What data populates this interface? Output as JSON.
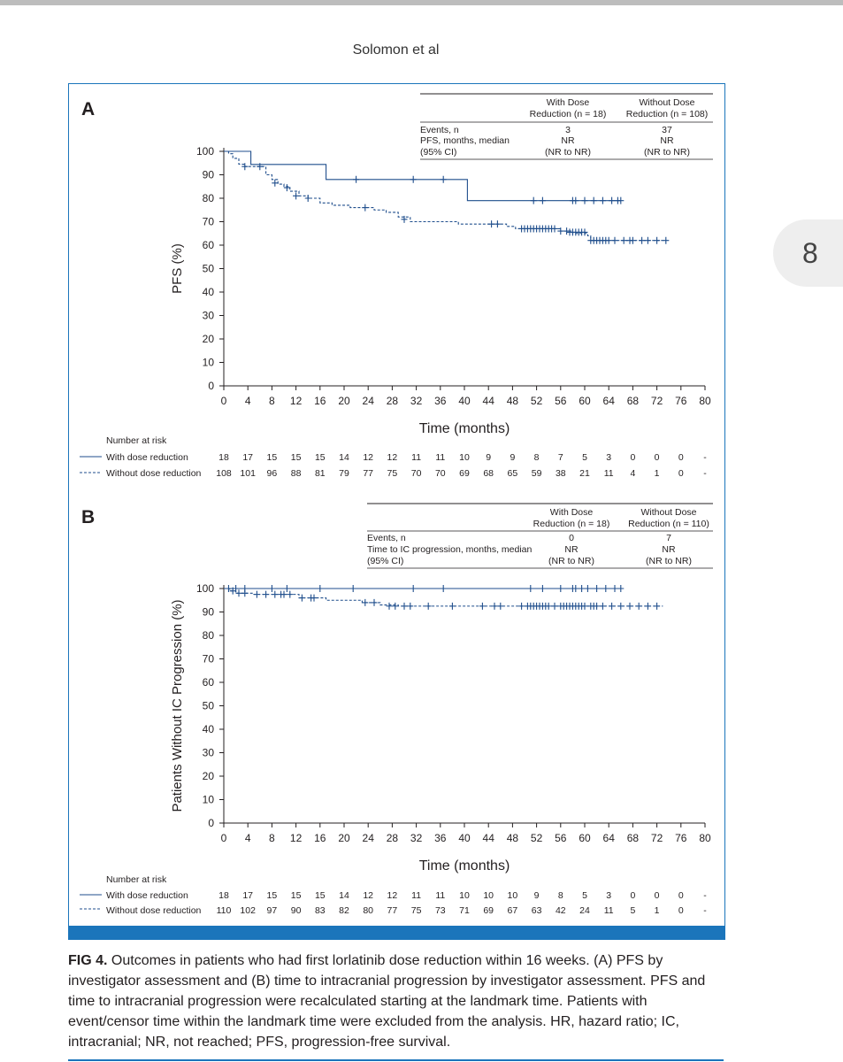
{
  "running_head": "Solomon et al",
  "page_number": "8",
  "colors": {
    "line": "#1f4e8c",
    "frame": "#1b75bb"
  },
  "caption": {
    "label": "FIG 4.",
    "text": "Outcomes in patients who had first lorlatinib dose reduction within 16 weeks. (A) PFS by investigator assessment and (B) time to intracranial progression by investigator assessment. PFS and time to intracranial progression were recalculated starting at the landmark time. Patients with event/censor time within the landmark time were excluded from the analysis. HR, hazard ratio; IC, intracranial; NR, not reached; PFS, progression-free survival."
  },
  "chart_data": [
    {
      "panel": "A",
      "type": "line",
      "xlabel": "Time (months)",
      "ylabel": "PFS (%)",
      "xlim": [
        0,
        80
      ],
      "ylim": [
        0,
        100
      ],
      "xticks": [
        0,
        4,
        8,
        12,
        16,
        20,
        24,
        28,
        32,
        36,
        40,
        44,
        48,
        52,
        56,
        60,
        64,
        68,
        72,
        76,
        80
      ],
      "yticks": [
        0,
        10,
        20,
        30,
        40,
        50,
        60,
        70,
        80,
        90,
        100
      ],
      "table": {
        "headers": [
          "With Dose\nReduction (n = 18)",
          "Without Dose\nReduction (n = 108)"
        ],
        "rows": [
          {
            "label": "Events, n",
            "values": [
              "3",
              "37"
            ]
          },
          {
            "label": "PFS, months, median",
            "values": [
              "NR",
              "NR"
            ]
          },
          {
            "label": "(95% CI)",
            "values": [
              "(NR to NR)",
              "(NR to NR)"
            ]
          }
        ]
      },
      "risk_title": "Number at risk",
      "series": [
        {
          "name": "With dose reduction",
          "style": "solid",
          "steps": [
            [
              0,
              100
            ],
            [
              4.5,
              94.4
            ],
            [
              17,
              88
            ],
            [
              40.5,
              79
            ]
          ],
          "end": 66,
          "censors": [
            [
              22,
              88
            ],
            [
              31.5,
              88
            ],
            [
              36.5,
              88
            ],
            [
              51.5,
              79
            ],
            [
              53,
              79
            ],
            [
              58,
              79
            ],
            [
              58.5,
              79
            ],
            [
              60,
              79
            ],
            [
              61.5,
              79
            ],
            [
              63,
              79
            ],
            [
              64.5,
              79
            ],
            [
              65.5,
              79
            ],
            [
              66,
              79
            ]
          ],
          "at_risk": [
            "18",
            "17",
            "15",
            "15",
            "15",
            "14",
            "12",
            "12",
            "11",
            "11",
            "10",
            "9",
            "9",
            "8",
            "7",
            "5",
            "3",
            "0",
            "0",
            "0",
            "-"
          ]
        },
        {
          "name": "Without dose reduction",
          "style": "dashed",
          "steps": [
            [
              0,
              100
            ],
            [
              0.8,
              99
            ],
            [
              1.5,
              97
            ],
            [
              2.5,
              94.5
            ],
            [
              3.5,
              93.5
            ],
            [
              7,
              90
            ],
            [
              8,
              88
            ],
            [
              9,
              86
            ],
            [
              10,
              85
            ],
            [
              11,
              83
            ],
            [
              12.5,
              81
            ],
            [
              14,
              80
            ],
            [
              16,
              78
            ],
            [
              18,
              77
            ],
            [
              21,
              76
            ],
            [
              25,
              75
            ],
            [
              27,
              74
            ],
            [
              29,
              72
            ],
            [
              31,
              70
            ],
            [
              37,
              70
            ],
            [
              39,
              69
            ],
            [
              45,
              69
            ],
            [
              47,
              68
            ],
            [
              48.5,
              67
            ],
            [
              56,
              66
            ],
            [
              58,
              65
            ],
            [
              60.5,
              64
            ],
            [
              61,
              62
            ]
          ],
          "end": 73.5,
          "censors": [
            [
              3.5,
              93.5
            ],
            [
              6,
              93.5
            ],
            [
              8.5,
              86.5
            ],
            [
              10.5,
              84.5
            ],
            [
              12,
              81
            ],
            [
              14,
              80
            ],
            [
              23.5,
              76
            ],
            [
              30,
              71
            ],
            [
              44.5,
              69
            ],
            [
              45.5,
              69
            ],
            [
              49.5,
              67
            ],
            [
              50,
              67
            ],
            [
              50.5,
              67
            ],
            [
              51,
              67
            ],
            [
              51.5,
              67
            ],
            [
              52,
              67
            ],
            [
              52.5,
              67
            ],
            [
              53,
              67
            ],
            [
              53.5,
              67
            ],
            [
              54,
              67
            ],
            [
              54.5,
              67
            ],
            [
              55,
              67
            ],
            [
              56,
              66
            ],
            [
              57,
              66
            ],
            [
              57.5,
              65.5
            ],
            [
              58,
              65.5
            ],
            [
              58.5,
              65.5
            ],
            [
              59,
              65.5
            ],
            [
              59.5,
              65.5
            ],
            [
              60,
              65.5
            ],
            [
              61,
              62
            ],
            [
              61.5,
              62
            ],
            [
              62,
              62
            ],
            [
              62.5,
              62
            ],
            [
              63,
              62
            ],
            [
              63.5,
              62
            ],
            [
              64,
              62
            ],
            [
              65,
              62
            ],
            [
              66.5,
              62
            ],
            [
              67.5,
              62
            ],
            [
              68,
              62
            ],
            [
              69.5,
              62
            ],
            [
              70.5,
              62
            ],
            [
              72,
              62
            ],
            [
              73.5,
              62
            ]
          ],
          "at_risk": [
            "108",
            "101",
            "96",
            "88",
            "81",
            "79",
            "77",
            "75",
            "70",
            "70",
            "69",
            "68",
            "65",
            "59",
            "38",
            "21",
            "11",
            "4",
            "1",
            "0",
            "-"
          ]
        }
      ]
    },
    {
      "panel": "B",
      "type": "line",
      "xlabel": "Time (months)",
      "ylabel": "Patients Without IC Progression (%)",
      "xlim": [
        0,
        80
      ],
      "ylim": [
        0,
        100
      ],
      "xticks": [
        0,
        4,
        8,
        12,
        16,
        20,
        24,
        28,
        32,
        36,
        40,
        44,
        48,
        52,
        56,
        60,
        64,
        68,
        72,
        76,
        80
      ],
      "yticks": [
        0,
        10,
        20,
        30,
        40,
        50,
        60,
        70,
        80,
        90,
        100
      ],
      "table": {
        "headers": [
          "With Dose\nReduction (n = 18)",
          "Without Dose\nReduction (n = 110)"
        ],
        "rows": [
          {
            "label": "Events, n",
            "values": [
              "0",
              "7"
            ]
          },
          {
            "label": "Time to IC progression, months, median",
            "values": [
              "NR",
              "NR"
            ]
          },
          {
            "label": "(95% CI)",
            "values": [
              "(NR to NR)",
              "(NR to NR)"
            ]
          }
        ]
      },
      "risk_title": "Number at risk",
      "series": [
        {
          "name": "With dose reduction",
          "style": "solid",
          "steps": [
            [
              0,
              100
            ]
          ],
          "end": 66,
          "censors": [
            [
              0.8,
              100
            ],
            [
              2,
              100
            ],
            [
              3.5,
              100
            ],
            [
              8,
              100
            ],
            [
              10.5,
              100
            ],
            [
              16,
              100
            ],
            [
              21.5,
              100
            ],
            [
              31.5,
              100
            ],
            [
              36.5,
              100
            ],
            [
              51,
              100
            ],
            [
              53,
              100
            ],
            [
              56,
              100
            ],
            [
              58,
              100
            ],
            [
              58.5,
              100
            ],
            [
              59.5,
              100
            ],
            [
              60.5,
              100
            ],
            [
              62,
              100
            ],
            [
              63.5,
              100
            ],
            [
              65,
              100
            ],
            [
              66,
              100
            ]
          ],
          "end_label": ""
        },
        {
          "name": "Without dose reduction",
          "style": "dashed",
          "steps": [
            [
              0,
              100
            ],
            [
              1,
              99
            ],
            [
              2,
              98
            ],
            [
              5,
              97.5
            ],
            [
              12.5,
              96
            ],
            [
              17,
              95
            ],
            [
              23,
              94
            ],
            [
              26,
              93
            ],
            [
              29,
              92.5
            ]
          ],
          "end": 73,
          "censors": [
            [
              1.5,
              99
            ],
            [
              2.5,
              98
            ],
            [
              3.5,
              98
            ],
            [
              5.5,
              97.5
            ],
            [
              7,
              97.5
            ],
            [
              8.5,
              97.5
            ],
            [
              9.5,
              97.5
            ],
            [
              10,
              97.5
            ],
            [
              11,
              97.5
            ],
            [
              13,
              96
            ],
            [
              14.5,
              96
            ],
            [
              15,
              96
            ],
            [
              23.5,
              94
            ],
            [
              25,
              94
            ],
            [
              27.5,
              92.5
            ],
            [
              28.5,
              92.5
            ],
            [
              30,
              92.5
            ],
            [
              31,
              92.5
            ],
            [
              34,
              92.5
            ],
            [
              38,
              92.5
            ],
            [
              43,
              92.5
            ],
            [
              45,
              92.5
            ],
            [
              46,
              92.5
            ],
            [
              49.5,
              92.5
            ],
            [
              50.5,
              92.5
            ],
            [
              51,
              92.5
            ],
            [
              51.5,
              92.5
            ],
            [
              52,
              92.5
            ],
            [
              52.5,
              92.5
            ],
            [
              53,
              92.5
            ],
            [
              53.5,
              92.5
            ],
            [
              54,
              92.5
            ],
            [
              55,
              92.5
            ],
            [
              56,
              92.5
            ],
            [
              56.5,
              92.5
            ],
            [
              57,
              92.5
            ],
            [
              57.5,
              92.5
            ],
            [
              58,
              92.5
            ],
            [
              58.5,
              92.5
            ],
            [
              59,
              92.5
            ],
            [
              59.5,
              92.5
            ],
            [
              60,
              92.5
            ],
            [
              61,
              92.5
            ],
            [
              61.5,
              92.5
            ],
            [
              62,
              92.5
            ],
            [
              63,
              92.5
            ],
            [
              64.5,
              92.5
            ],
            [
              66,
              92.5
            ],
            [
              67.5,
              92.5
            ],
            [
              69,
              92.5
            ],
            [
              70.5,
              92.5
            ],
            [
              72,
              92.5
            ]
          ]
        }
      ],
      "at_risk": [
        [
          "18",
          "17",
          "15",
          "15",
          "15",
          "14",
          "12",
          "12",
          "11",
          "11",
          "10",
          "10",
          "10",
          "9",
          "8",
          "5",
          "3",
          "0",
          "0",
          "0",
          "-"
        ],
        [
          "110",
          "102",
          "97",
          "90",
          "83",
          "82",
          "80",
          "77",
          "75",
          "73",
          "71",
          "69",
          "67",
          "63",
          "42",
          "24",
          "11",
          "5",
          "1",
          "0",
          "-"
        ]
      ]
    }
  ]
}
